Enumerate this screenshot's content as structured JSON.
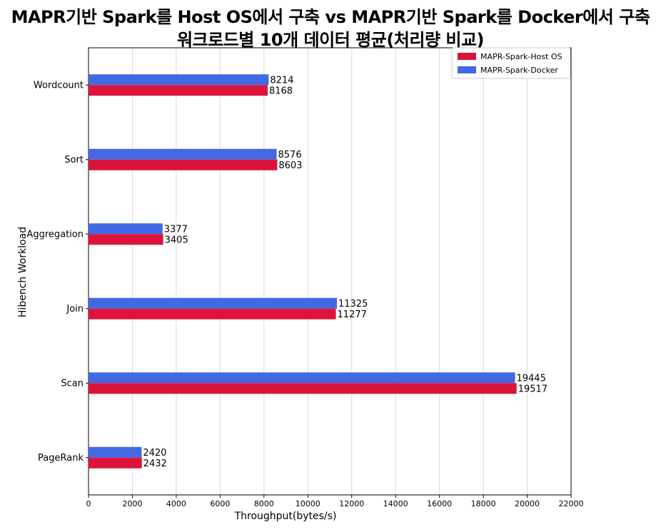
{
  "chart_data": {
    "type": "bar",
    "orientation": "horizontal",
    "title": "MAPR기반 Spark를 Host OS에서 구축   vs   MAPR기반 Spark를 Docker에서 구축",
    "subtitle": "워크로드별 10개 데이터 평균(처리량 비교)",
    "xlabel": "Throughput(bytes/s)",
    "ylabel": "Hibench Workload",
    "xlim": [
      0,
      22000
    ],
    "xticks": [
      0,
      2000,
      4000,
      6000,
      8000,
      10000,
      12000,
      14000,
      16000,
      18000,
      20000,
      22000
    ],
    "grid": "vertical",
    "legend_position": "top-right",
    "categories": [
      "Wordcount",
      "Sort",
      "Aggregation",
      "Join",
      "Scan",
      "PageRank"
    ],
    "series": [
      {
        "name": "MAPR-Spark-Host OS",
        "color": "#dc143c",
        "values": [
          8168,
          8603,
          3405,
          11277,
          19517,
          2432
        ]
      },
      {
        "name": "MAPR-Spark-Docker",
        "color": "#4169e1",
        "values": [
          8214,
          8576,
          3377,
          11325,
          19445,
          2420
        ]
      }
    ]
  }
}
